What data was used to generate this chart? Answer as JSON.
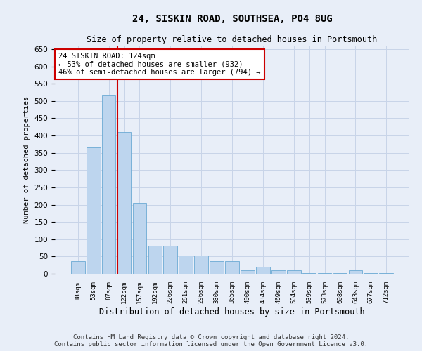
{
  "title": "24, SISKIN ROAD, SOUTHSEA, PO4 8UG",
  "subtitle": "Size of property relative to detached houses in Portsmouth",
  "xlabel": "Distribution of detached houses by size in Portsmouth",
  "ylabel": "Number of detached properties",
  "categories": [
    "18sqm",
    "53sqm",
    "87sqm",
    "122sqm",
    "157sqm",
    "192sqm",
    "226sqm",
    "261sqm",
    "296sqm",
    "330sqm",
    "365sqm",
    "400sqm",
    "434sqm",
    "469sqm",
    "504sqm",
    "539sqm",
    "573sqm",
    "608sqm",
    "643sqm",
    "677sqm",
    "712sqm"
  ],
  "values": [
    37,
    365,
    515,
    410,
    205,
    82,
    82,
    53,
    53,
    37,
    37,
    11,
    20,
    10,
    10,
    3,
    3,
    3,
    10,
    3,
    3
  ],
  "bar_color": "#bdd5ee",
  "bar_edge_color": "#6aaad4",
  "grid_color": "#c8d4e8",
  "bg_color": "#e8eef8",
  "vline_color": "#cc0000",
  "vline_x_index": 3,
  "annotation_text": "24 SISKIN ROAD: 124sqm\n← 53% of detached houses are smaller (932)\n46% of semi-detached houses are larger (794) →",
  "annotation_box_color": "white",
  "annotation_box_edge": "#cc0000",
  "footer": "Contains HM Land Registry data © Crown copyright and database right 2024.\nContains public sector information licensed under the Open Government Licence v3.0.",
  "ylim": [
    0,
    660
  ],
  "yticks": [
    0,
    50,
    100,
    150,
    200,
    250,
    300,
    350,
    400,
    450,
    500,
    550,
    600,
    650
  ]
}
